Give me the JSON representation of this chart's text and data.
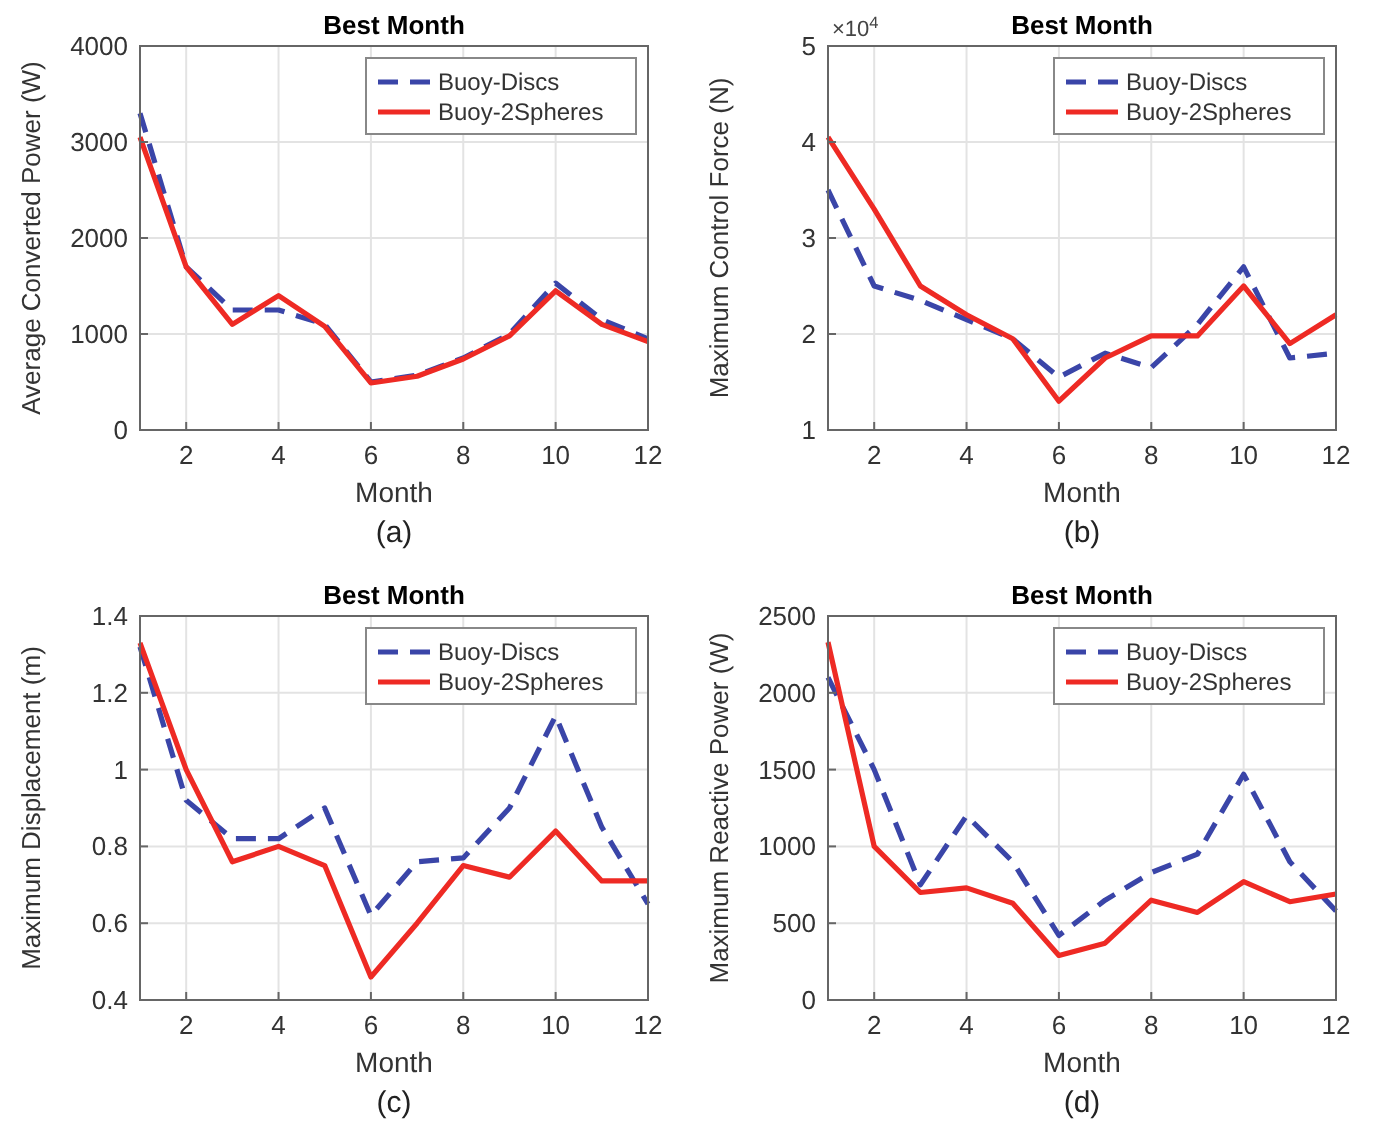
{
  "chart_data": [
    {
      "type": "line",
      "title": "Best Month",
      "xlabel": "Month",
      "ylabel": "Average Converted Power (W)",
      "annotations": [
        "(a)"
      ],
      "x": [
        1,
        2,
        3,
        4,
        5,
        6,
        7,
        8,
        9,
        10,
        11,
        12
      ],
      "xlim": [
        1,
        12
      ],
      "xticks": [
        2,
        4,
        6,
        8,
        10,
        12
      ],
      "ylim": [
        0,
        4000
      ],
      "yticks": [
        0,
        1000,
        2000,
        3000,
        4000
      ],
      "grid": true,
      "legend": "top right",
      "series": [
        {
          "name": "Buoy-Discs",
          "color": "#3a45a8",
          "line_style": "dashed",
          "values": [
            3300,
            1700,
            1250,
            1250,
            1100,
            500,
            570,
            750,
            1000,
            1530,
            1150,
            950
          ]
        },
        {
          "name": "Buoy-2Spheres",
          "color": "#ee2a24",
          "line_style": "solid",
          "values": [
            3050,
            1700,
            1100,
            1400,
            1080,
            490,
            560,
            740,
            980,
            1450,
            1100,
            920
          ]
        }
      ]
    },
    {
      "type": "line",
      "title": "Best Month",
      "xlabel": "Month",
      "ylabel": "Maximum Control Force (N)",
      "annotations": [
        "×10$^{4}$",
        "(b)"
      ],
      "x": [
        1,
        2,
        3,
        4,
        5,
        6,
        7,
        8,
        9,
        10,
        11,
        12
      ],
      "xlim": [
        1,
        12
      ],
      "xticks": [
        2,
        4,
        6,
        8,
        10,
        12
      ],
      "ylim": [
        1,
        5
      ],
      "yticks": [
        1,
        2,
        3,
        4,
        5
      ],
      "grid": true,
      "legend": "top right",
      "series": [
        {
          "name": "Buoy-Discs",
          "color": "#3a45a8",
          "line_style": "dashed",
          "values": [
            3.5,
            2.5,
            2.35,
            2.15,
            1.95,
            1.55,
            1.8,
            1.65,
            2.1,
            2.7,
            1.75,
            1.8
          ]
        },
        {
          "name": "Buoy-2Spheres",
          "color": "#ee2a24",
          "line_style": "solid",
          "values": [
            4.05,
            3.3,
            2.5,
            2.2,
            1.95,
            1.3,
            1.75,
            1.98,
            1.98,
            2.5,
            1.9,
            2.2
          ]
        }
      ]
    },
    {
      "type": "line",
      "title": "Best Month",
      "xlabel": "Month",
      "ylabel": "Maximum Displacement (m)",
      "annotations": [
        "(c)"
      ],
      "x": [
        1,
        2,
        3,
        4,
        5,
        6,
        7,
        8,
        9,
        10,
        11,
        12
      ],
      "xlim": [
        1,
        12
      ],
      "xticks": [
        2,
        4,
        6,
        8,
        10,
        12
      ],
      "ylim": [
        0.4,
        1.4
      ],
      "yticks": [
        0.4,
        0.6,
        0.8,
        1,
        1.2,
        1.4
      ],
      "grid": true,
      "legend": "top right",
      "series": [
        {
          "name": "Buoy-Discs",
          "color": "#3a45a8",
          "line_style": "dashed",
          "values": [
            1.32,
            0.92,
            0.82,
            0.82,
            0.9,
            0.62,
            0.76,
            0.77,
            0.9,
            1.14,
            0.85,
            0.65
          ]
        },
        {
          "name": "Buoy-2Spheres",
          "color": "#ee2a24",
          "line_style": "solid",
          "values": [
            1.33,
            1.0,
            0.76,
            0.8,
            0.75,
            0.46,
            0.6,
            0.75,
            0.72,
            0.84,
            0.71,
            0.71
          ]
        }
      ]
    },
    {
      "type": "line",
      "title": "Best Month",
      "xlabel": "Month",
      "ylabel": "Maximum Reactive Power (W)",
      "annotations": [
        "(d)"
      ],
      "x": [
        1,
        2,
        3,
        4,
        5,
        6,
        7,
        8,
        9,
        10,
        11,
        12
      ],
      "xlim": [
        1,
        12
      ],
      "xticks": [
        2,
        4,
        6,
        8,
        10,
        12
      ],
      "ylim": [
        0,
        2500
      ],
      "yticks": [
        0,
        500,
        1000,
        1500,
        2000,
        2500
      ],
      "grid": true,
      "legend": "top right",
      "series": [
        {
          "name": "Buoy-Discs",
          "color": "#3a45a8",
          "line_style": "dashed",
          "values": [
            2100,
            1500,
            750,
            1200,
            900,
            420,
            650,
            830,
            950,
            1470,
            900,
            580
          ]
        },
        {
          "name": "Buoy-2Spheres",
          "color": "#ee2a24",
          "line_style": "solid",
          "values": [
            2330,
            1000,
            700,
            730,
            630,
            290,
            370,
            650,
            570,
            770,
            640,
            690
          ]
        }
      ]
    }
  ]
}
